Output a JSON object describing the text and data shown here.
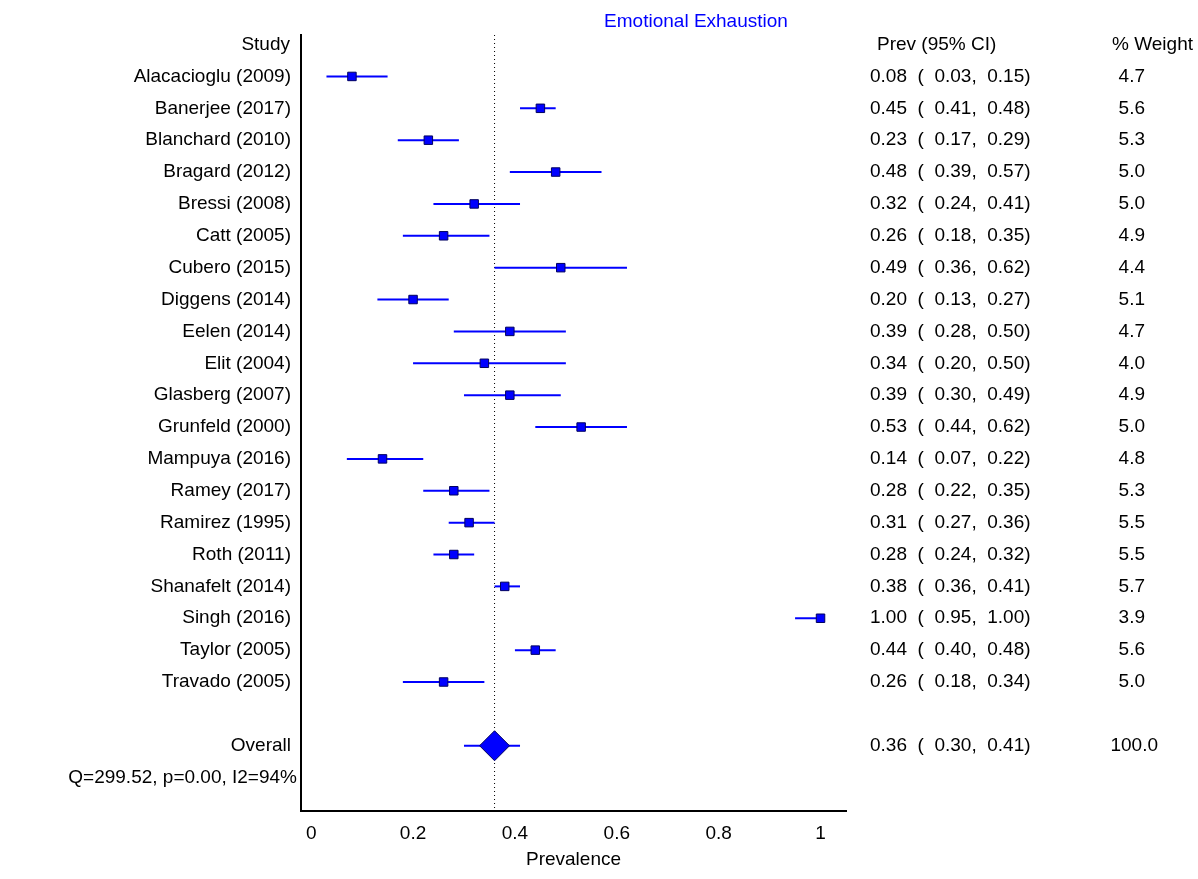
{
  "chart_data": {
    "type": "scatter",
    "orientation": "horizontal",
    "title": "Emotional Exhaustion",
    "ylabel": "Study",
    "xlabel": "Prevalence",
    "categories": [
      "Alacacioglu (2009)",
      "Banerjee (2017)",
      "Blanchard (2010)",
      "Bragard (2012)",
      "Bressi (2008)",
      "Catt (2005)",
      "Cubero (2015)",
      "Diggens (2014)",
      "Eelen (2014)",
      "Elit (2004)",
      "Glasberg (2007)",
      "Grunfeld (2000)",
      "Mampuya (2016)",
      "Ramey (2017)",
      "Ramirez (1995)",
      "Roth (2011)",
      "Shanafelt (2014)",
      "Singh (2016)",
      "Taylor (2005)",
      "Travado (2005)",
      null,
      "Overall"
    ],
    "series": [
      {
        "color": "#0000ff",
        "marker": "square",
        "values": [
          0.08,
          0.45,
          0.23,
          0.48,
          0.32,
          0.26,
          0.49,
          0.2,
          0.39,
          0.34,
          0.39,
          0.53,
          0.14,
          0.28,
          0.31,
          0.28,
          0.38,
          1.0,
          0.44,
          0.26,
          null,
          null
        ],
        "errors": [
          [
            0.03,
            0.15
          ],
          [
            0.41,
            0.48
          ],
          [
            0.17,
            0.29
          ],
          [
            0.39,
            0.57
          ],
          [
            0.24,
            0.41
          ],
          [
            0.18,
            0.35
          ],
          [
            0.36,
            0.62
          ],
          [
            0.13,
            0.27
          ],
          [
            0.28,
            0.5
          ],
          [
            0.2,
            0.5
          ],
          [
            0.3,
            0.49
          ],
          [
            0.44,
            0.62
          ],
          [
            0.07,
            0.22
          ],
          [
            0.22,
            0.35
          ],
          [
            0.27,
            0.36
          ],
          [
            0.24,
            0.32
          ],
          [
            0.36,
            0.41
          ],
          [
            0.95,
            1.0
          ],
          [
            0.4,
            0.48
          ],
          [
            0.18,
            0.34
          ],
          null,
          null
        ],
        "value_labels": [
          "0.08  (  0.03,  0.15)",
          "0.45  (  0.41,  0.48)",
          "0.23  (  0.17,  0.29)",
          "0.48  (  0.39,  0.57)",
          "0.32  (  0.24,  0.41)",
          "0.26  (  0.18,  0.35)",
          "0.49  (  0.36,  0.62)",
          "0.20  (  0.13,  0.27)",
          "0.39  (  0.28,  0.50)",
          "0.34  (  0.20,  0.50)",
          "0.39  (  0.30,  0.49)",
          "0.53  (  0.44,  0.62)",
          "0.14  (  0.07,  0.22)",
          "0.28  (  0.22,  0.35)",
          "0.31  (  0.27,  0.36)",
          "0.28  (  0.24,  0.32)",
          "0.38  (  0.36,  0.41)",
          "1.00  (  0.95,  1.00)",
          "0.44  (  0.40,  0.48)",
          "0.26  (  0.18,  0.34)",
          null,
          null
        ]
      },
      {
        "color": "#0000ff",
        "marker": "diamond",
        "values": [
          null,
          null,
          null,
          null,
          null,
          null,
          null,
          null,
          null,
          null,
          null,
          null,
          null,
          null,
          null,
          null,
          null,
          null,
          null,
          null,
          null,
          0.36
        ],
        "errors": [
          null,
          null,
          null,
          null,
          null,
          null,
          null,
          null,
          null,
          null,
          null,
          null,
          null,
          null,
          null,
          null,
          null,
          null,
          null,
          null,
          null,
          [
            0.3,
            0.41
          ]
        ]
      }
    ],
    "xlim": [
      -0.02,
      1.05
    ],
    "xticks": [
      0,
      0.2,
      0.4,
      0.6,
      0.8,
      1
    ],
    "ref_lines": [
      {
        "axis": "x",
        "value": 0.36,
        "line_style": "dotted",
        "color": "#000000"
      }
    ],
    "annotations": [
      "Prev (95% CI)",
      "% Weight",
      "Q=299.52, p=0.00, I2=94%",
      "4.7",
      "5.6",
      "5.3",
      "5.0",
      "5.0",
      "4.9",
      "4.4",
      "5.1",
      "4.7",
      "4.0",
      "4.9",
      "5.0",
      "4.8",
      "5.3",
      "5.5",
      "5.5",
      "5.7",
      "3.9",
      "5.6",
      "5.0",
      "100.0",
      "0.36  (  0.30,  0.41)"
    ]
  }
}
